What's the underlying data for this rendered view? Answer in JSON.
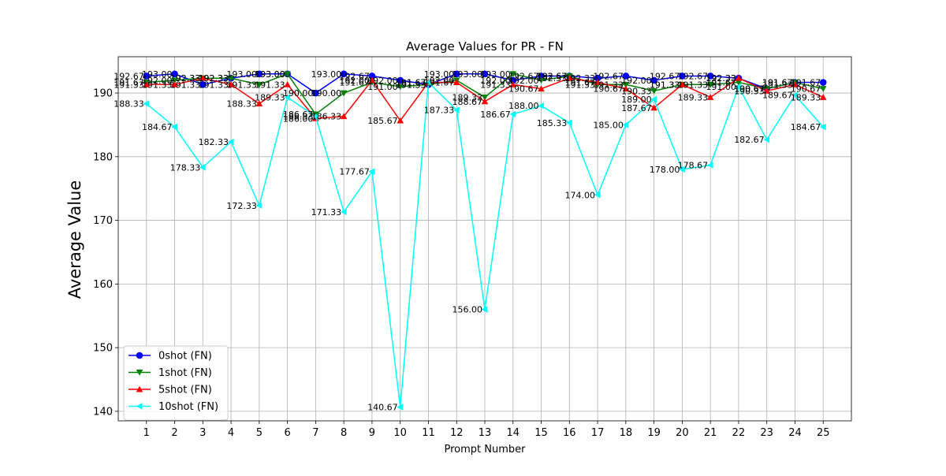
{
  "chart_data": {
    "type": "line",
    "title": "Average Values for PR - FN",
    "xlabel": "Prompt Number",
    "ylabel": "Average Value",
    "x": [
      1,
      2,
      3,
      4,
      5,
      6,
      7,
      8,
      9,
      10,
      11,
      12,
      13,
      14,
      15,
      16,
      17,
      18,
      19,
      20,
      21,
      22,
      23,
      24,
      25
    ],
    "xlim": [
      0.0,
      26.0
    ],
    "ylim": [
      138.5,
      195.7
    ],
    "yticks": [
      140,
      150,
      160,
      170,
      180,
      190
    ],
    "grid": true,
    "legend_position": "lower-left",
    "series": [
      {
        "name": "0shot (FN)",
        "color": "#0000ff",
        "marker": "circle",
        "values": [
          192.67,
          193.0,
          191.33,
          192.33,
          193.0,
          193.0,
          190.0,
          193.0,
          192.67,
          192.0,
          191.33,
          193.0,
          193.0,
          192.0,
          192.67,
          192.67,
          192.33,
          192.67,
          192.0,
          192.67,
          192.67,
          192.33,
          190.67,
          191.67,
          191.67
        ]
      },
      {
        "name": "1shot (FN)",
        "color": "#008000",
        "marker": "triangle-down",
        "values": [
          191.67,
          192.0,
          192.33,
          192.33,
          191.33,
          193.0,
          186.67,
          190.0,
          191.67,
          191.0,
          191.33,
          192.0,
          189.33,
          193.0,
          192.0,
          192.67,
          191.33,
          191.33,
          190.33,
          191.33,
          191.33,
          191.67,
          190.67,
          191.67,
          190.67
        ]
      },
      {
        "name": "5shot (FN)",
        "color": "#ff0000",
        "marker": "triangle-up",
        "values": [
          191.33,
          191.33,
          192.33,
          191.33,
          188.33,
          191.33,
          186.0,
          186.33,
          192.0,
          185.67,
          191.67,
          191.67,
          188.67,
          191.33,
          190.67,
          192.33,
          191.67,
          190.67,
          187.67,
          191.33,
          189.33,
          192.33,
          190.33,
          191.33,
          189.33
        ]
      },
      {
        "name": "10shot (FN)",
        "color": "#00ffff",
        "marker": "triangle-left",
        "values": [
          188.33,
          184.67,
          178.33,
          182.33,
          172.33,
          189.33,
          186.33,
          171.33,
          177.67,
          140.67,
          191.67,
          187.33,
          156.0,
          186.67,
          188.0,
          185.33,
          174.0,
          185.0,
          189.0,
          178.0,
          178.67,
          191.0,
          182.67,
          189.67,
          184.67
        ]
      }
    ]
  }
}
